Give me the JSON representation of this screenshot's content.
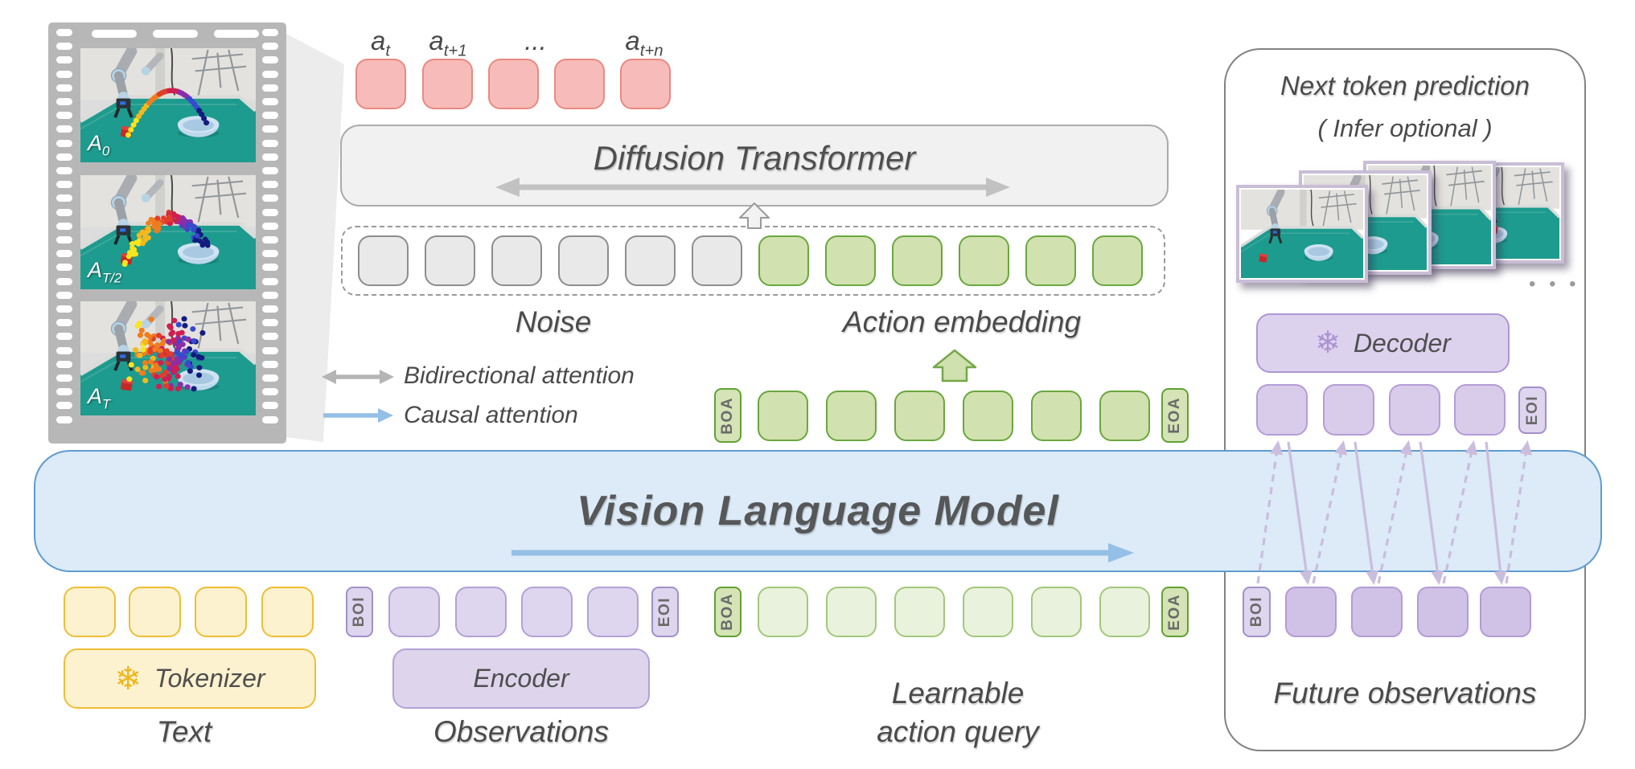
{
  "film": {
    "frames": [
      {
        "label": {
          "main": "A",
          "sub": "0"
        }
      },
      {
        "label": {
          "main": "A",
          "sub": "T/2"
        }
      },
      {
        "label": {
          "main": "A",
          "sub": "T"
        }
      }
    ]
  },
  "predicted_actions": {
    "token_count": 5,
    "labels": [
      {
        "main": "a",
        "sub": "t"
      },
      {
        "main": "a",
        "sub": "t+1"
      },
      {
        "main": "...",
        "sub": ""
      },
      {
        "main": "a",
        "sub": "t+n"
      }
    ]
  },
  "diffusion_transformer": {
    "title": "Diffusion Transformer"
  },
  "denoise_row": {
    "noise_label": "Noise",
    "action_label": "Action embedding",
    "noise_token_count": 6,
    "action_token_count": 6
  },
  "legend": {
    "bidirectional_label": "Bidirectional attention",
    "causal_label": "Causal attention"
  },
  "action_embedding_row": {
    "boa": "BOA",
    "eoa": "EOA",
    "token_count": 6
  },
  "vlm": {
    "title": "Vision Language Model"
  },
  "text_branch": {
    "icon": "snowflake",
    "icon_glyph": "❄",
    "tokenizer_label": "Tokenizer",
    "branch_label": "Text",
    "token_count": 4
  },
  "observation_branch": {
    "boi": "BOI",
    "eoi": "EOI",
    "encoder_label": "Encoder",
    "branch_label": "Observations",
    "token_count": 4
  },
  "query_branch": {
    "boa": "BOA",
    "eoa": "EOA",
    "label_line1": "Learnable",
    "label_line2": "action query",
    "token_count": 6
  },
  "future_panel": {
    "title": "Next token prediction",
    "subtitle": "( Infer optional )",
    "images_ellipsis": "• • •",
    "icon": "snowflake",
    "icon_glyph": "❄",
    "decoder_label": "Decoder",
    "top_row_eoi": "EOI",
    "bottom_row_boi": "BOI",
    "top_token_count": 4,
    "bottom_token_count": 4,
    "label": "Future observations"
  },
  "colors": {
    "action_pink": "#f7bcba",
    "action_pink_border": "#ea8981",
    "noise_gray": "#e9e9e9",
    "green": "#d1e1af",
    "green_border": "#6aa73f",
    "green_light": "#e9f2dc",
    "yellow": "#fdf2cf",
    "yellow_border": "#efbe35",
    "purple": "#ded5ee",
    "purple_border": "#b3a1d6",
    "vlm_blue_fill": "#dcebf7",
    "vlm_blue_border": "#5f9bd1",
    "causal_arrow_blue": "#94bfe6",
    "bidirectional_arrow_gray": "#c2c2c2",
    "text_gray": "#4a4a4a"
  }
}
